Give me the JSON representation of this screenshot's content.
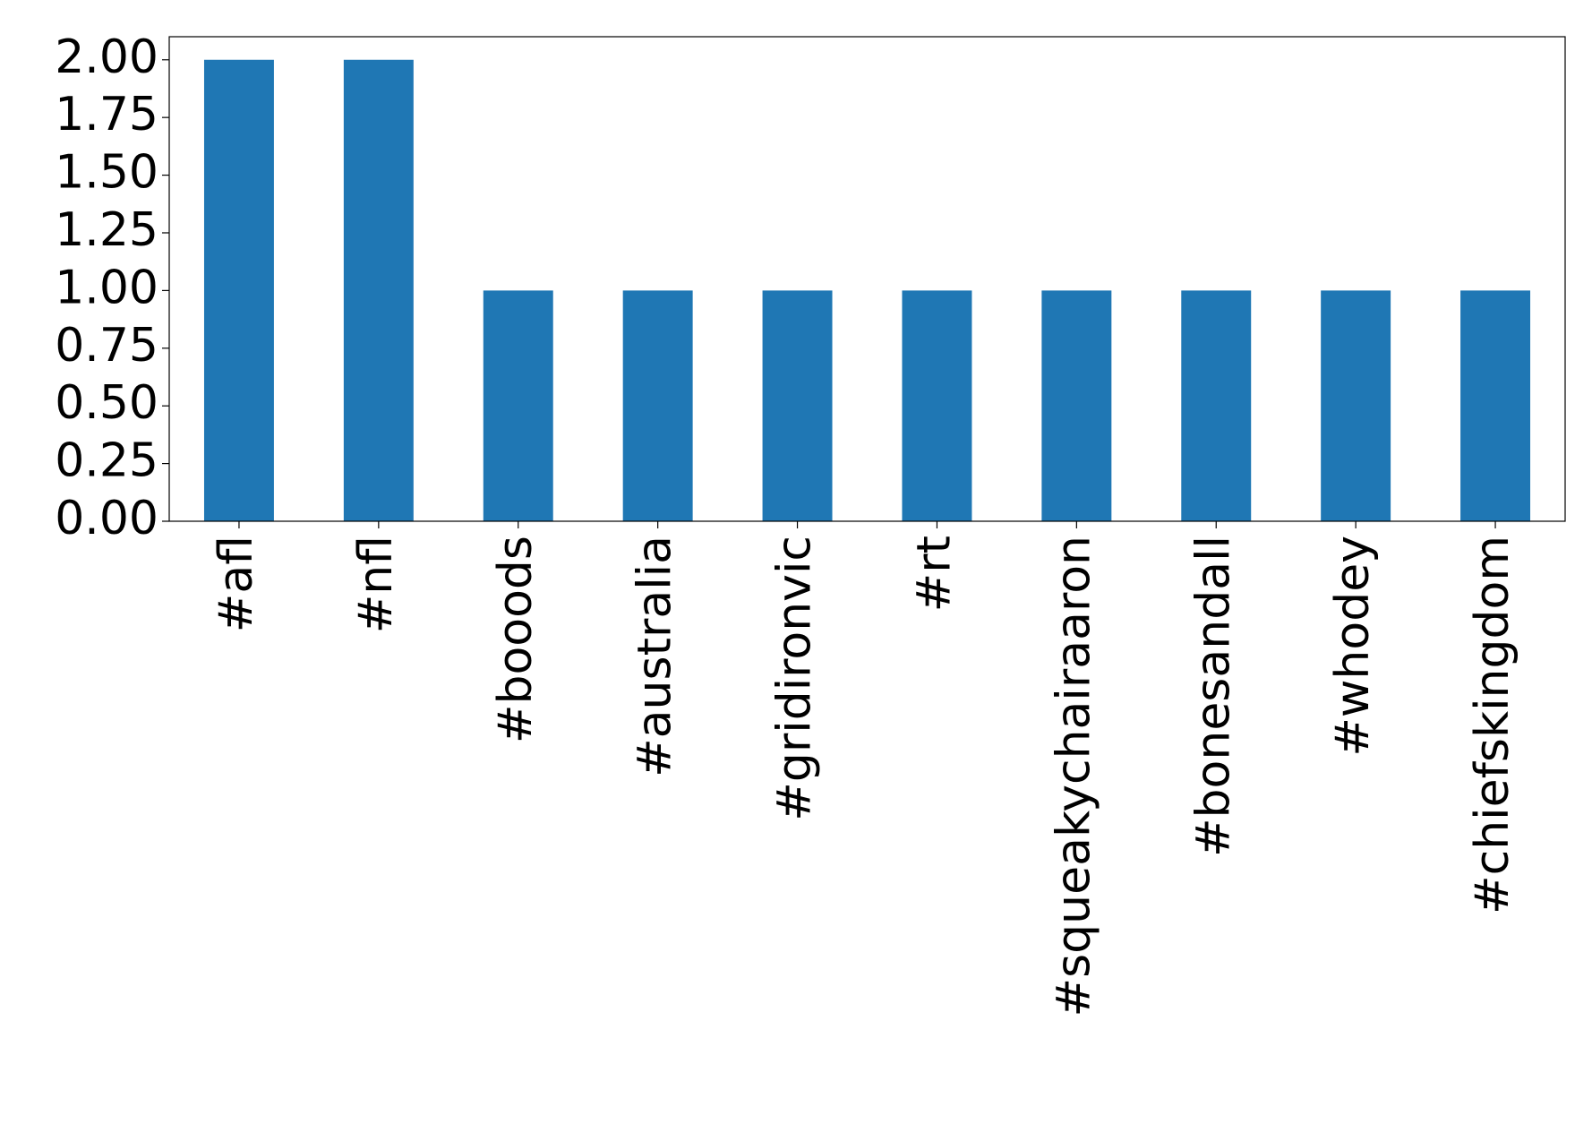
{
  "chart_data": {
    "type": "bar",
    "categories": [
      "#afl",
      "#nfl",
      "#booods",
      "#australia",
      "#gridironvic",
      "#rt",
      "#squeakychairaaron",
      "#bonesandall",
      "#whodey",
      "#chiefskingdom"
    ],
    "values": [
      2,
      2,
      1,
      1,
      1,
      1,
      1,
      1,
      1,
      1
    ],
    "color": "#1f77b4",
    "ylim": [
      0,
      2.1
    ],
    "yticks": [
      {
        "value": 0,
        "label": "0.00"
      },
      0.25,
      {
        "value": 0.5,
        "label": "0.50"
      },
      0.75,
      {
        "value": 1,
        "label": "1.00"
      },
      1.25,
      {
        "value": 1.5,
        "label": "1.50"
      },
      1.75,
      {
        "value": 2,
        "label": "2.00"
      }
    ],
    "grid": false
  }
}
